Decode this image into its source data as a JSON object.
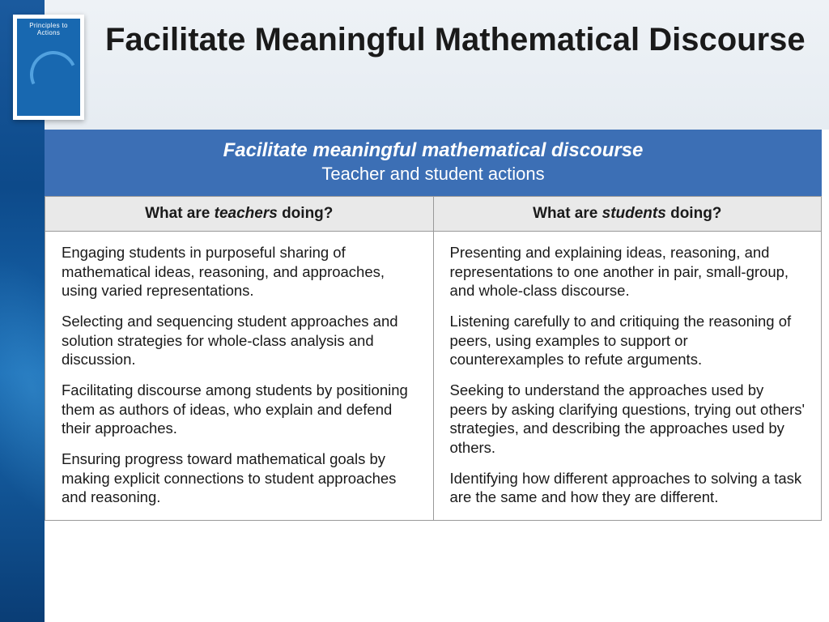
{
  "colors": {
    "sidebar_gradient_top": "#1a5a9e",
    "sidebar_gradient_bottom": "#0a3d75",
    "header_bg": "#eef2f6",
    "banner_bg": "#3c6fb5",
    "banner_text": "#ffffff",
    "th_bg": "#e9e9e9",
    "border": "#999999",
    "body_text": "#1a1a1a",
    "book_bg": "#1868b0"
  },
  "book": {
    "title": "Principles to Actions"
  },
  "slide": {
    "title": "Facilitate Meaningful Mathematical Discourse"
  },
  "table": {
    "type": "table",
    "banner_line1": "Facilitate meaningful mathematical discourse",
    "banner_line2": "Teacher and student actions",
    "columns": [
      {
        "label_pre": "What are ",
        "label_em": "teachers",
        "label_post": " doing?"
      },
      {
        "label_pre": "What are ",
        "label_em": "students",
        "label_post": " doing?"
      }
    ],
    "teachers": [
      "Engaging students in purposeful sharing of mathematical ideas, reasoning, and approaches, using varied representations.",
      "Selecting and sequencing student approaches and solution strategies for whole-class analysis and discussion.",
      "Facilitating discourse among students by positioning them as authors of ideas, who explain and defend their approaches.",
      "Ensuring progress toward mathematical goals by making explicit connections to student approaches and reasoning."
    ],
    "students": [
      "Presenting and explaining ideas, reasoning, and representations to one another in pair, small-group, and whole-class discourse.",
      "Listening carefully to and critiquing the reasoning of peers, using examples to support or counterexamples to refute arguments.",
      "Seeking to understand the approaches used by peers by asking clarifying questions, trying out others' strategies, and describing the approaches used by others.",
      "Identifying how different approaches to solving a task are the same and how they are different."
    ]
  }
}
